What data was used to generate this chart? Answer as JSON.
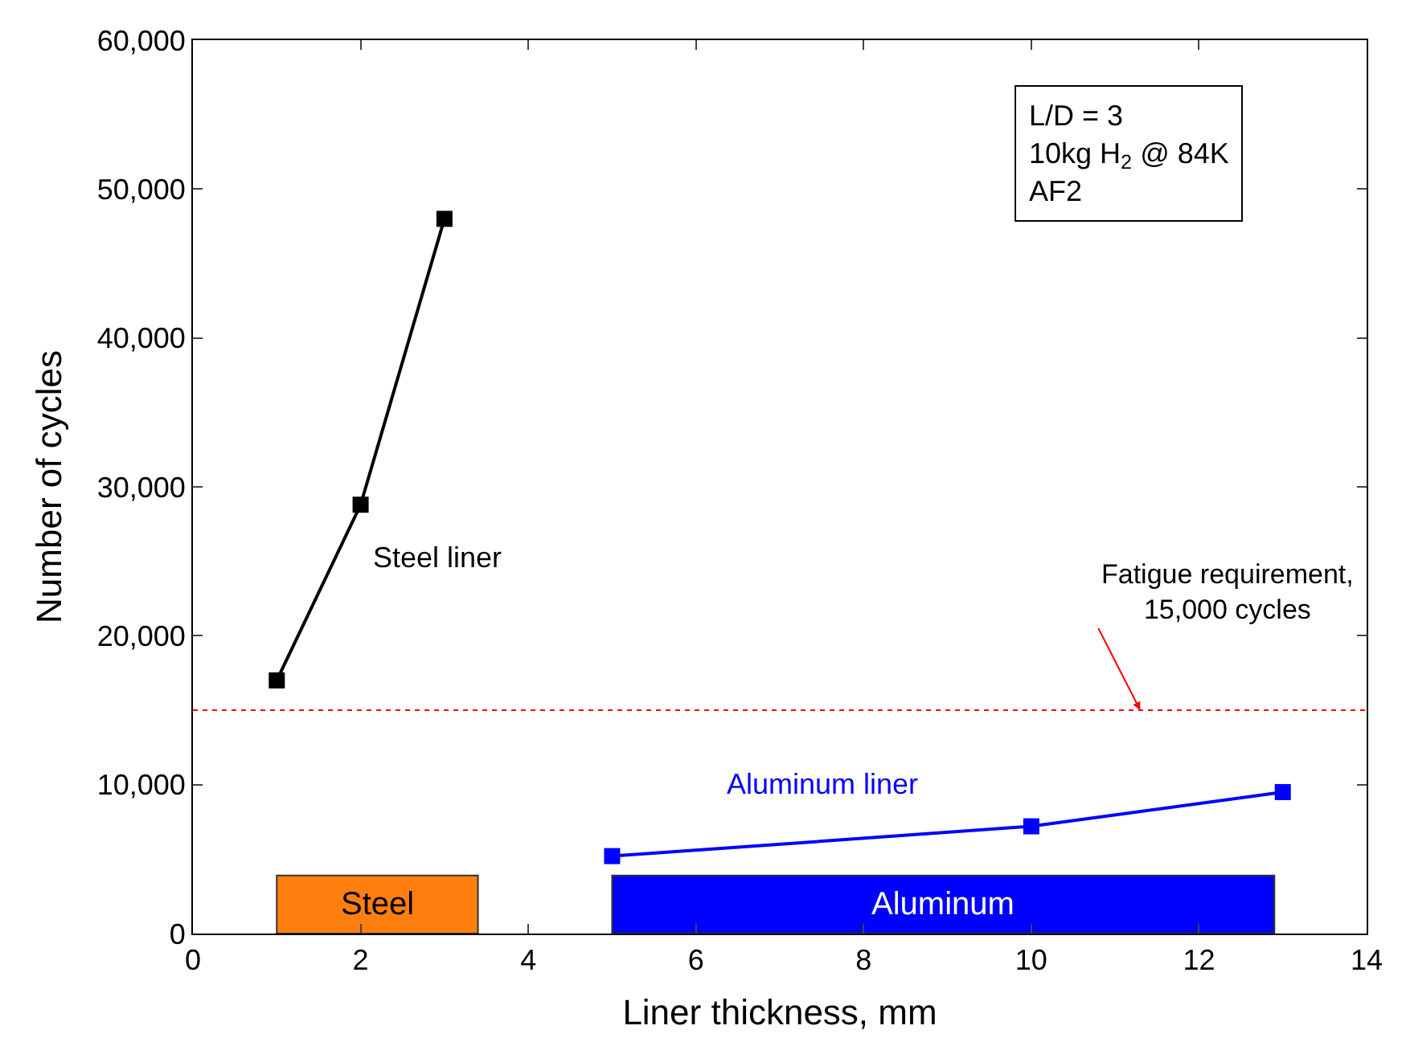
{
  "chart_data": {
    "type": "line",
    "xlabel": "Liner thickness, mm",
    "ylabel": "Number of cycles",
    "xlim": [
      0,
      14
    ],
    "xticks": [
      0,
      2,
      4,
      6,
      8,
      10,
      12,
      14
    ],
    "ylim": [
      0,
      60000
    ],
    "yticks": [
      {
        "value": 0,
        "label": "0"
      },
      {
        "value": 10000,
        "label": "10,000"
      },
      {
        "value": 20000,
        "label": "20,000"
      },
      {
        "value": 30000,
        "label": "30,000"
      },
      {
        "value": 40000,
        "label": "40,000"
      },
      {
        "value": 50000,
        "label": "50,000"
      },
      {
        "value": 60000,
        "label": "60,000"
      }
    ],
    "series": [
      {
        "name": "Steel liner",
        "color": "#000000",
        "x": [
          1,
          2,
          3
        ],
        "values": [
          17000,
          28800,
          48000
        ]
      },
      {
        "name": "Aluminum liner",
        "color": "#0000ff",
        "x": [
          5,
          10,
          13
        ],
        "values": [
          5200,
          7200,
          9500
        ]
      }
    ],
    "marker": "square",
    "line_style": "solid",
    "grid": false,
    "legend": false,
    "ref_lines": [
      {
        "axis": "y",
        "value": 15000,
        "label": "Fatigue requirement,\n15,000 cycles",
        "color": "#ff0000",
        "line_style": "dotted"
      }
    ],
    "bands": [
      {
        "axis": "x",
        "from": 1,
        "to": 3.4,
        "label": "Steel",
        "color": "#ff7f0e"
      },
      {
        "axis": "x",
        "from": 5,
        "to": 12.9,
        "label": "Aluminum",
        "color": "#0000ff"
      }
    ],
    "annotations": [
      "L/D = 3\n10kg H$_{2}$ @ 84K\nAF2"
    ]
  }
}
